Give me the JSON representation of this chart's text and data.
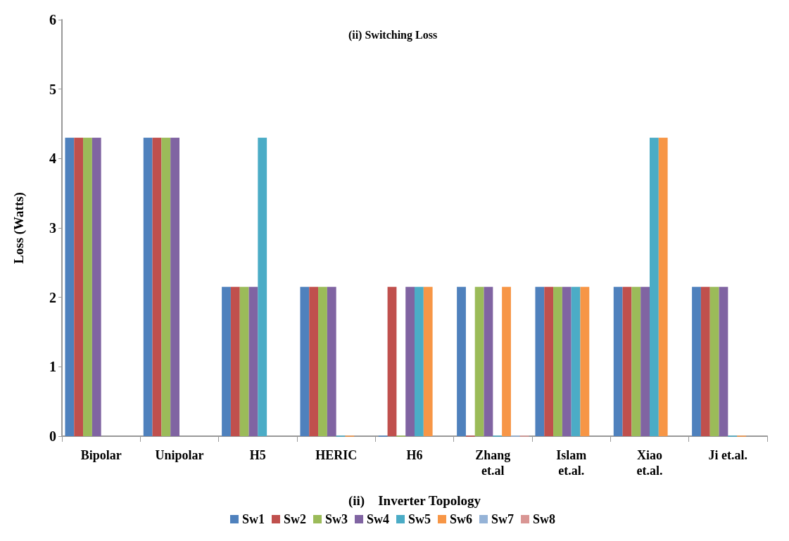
{
  "chart_data": {
    "type": "bar",
    "title": "(ii) Switching Loss",
    "xlabel": "(ii)    Inverter Topology",
    "ylabel": "Loss (Watts)",
    "categories": [
      "Bipolar",
      "Unipolar",
      "H5",
      "HERIC",
      "H6",
      "Zhang\net.al",
      "Islam\net.al.",
      "Xiao\net.al.",
      "Ji et.al."
    ],
    "series": [
      {
        "name": "Sw1",
        "color": "#4f81bd",
        "values": [
          4.3,
          4.3,
          2.15,
          2.15,
          0,
          2.15,
          2.15,
          2.15,
          2.15
        ]
      },
      {
        "name": "Sw2",
        "color": "#c0504d",
        "values": [
          4.3,
          4.3,
          2.15,
          2.15,
          2.15,
          0,
          2.15,
          2.15,
          2.15
        ]
      },
      {
        "name": "Sw3",
        "color": "#9bbb59",
        "values": [
          4.3,
          4.3,
          2.15,
          2.15,
          0,
          2.15,
          2.15,
          2.15,
          2.15
        ]
      },
      {
        "name": "Sw4",
        "color": "#8064a2",
        "values": [
          4.3,
          4.3,
          2.15,
          2.15,
          2.15,
          2.15,
          2.15,
          2.15,
          2.15
        ]
      },
      {
        "name": "Sw5",
        "color": "#4bacc6",
        "values": [
          null,
          null,
          4.3,
          0,
          2.15,
          0,
          2.15,
          4.3,
          0
        ]
      },
      {
        "name": "Sw6",
        "color": "#f79646",
        "values": [
          null,
          null,
          null,
          0,
          2.15,
          2.15,
          2.15,
          4.3,
          0
        ]
      },
      {
        "name": "Sw7",
        "color": "#95b3d7",
        "values": [
          null,
          null,
          null,
          null,
          null,
          0,
          null,
          null,
          null
        ]
      },
      {
        "name": "Sw8",
        "color": "#d99694",
        "values": [
          null,
          null,
          null,
          null,
          null,
          0,
          null,
          null,
          null
        ]
      }
    ],
    "ylim": [
      0,
      6
    ],
    "yticks": [
      0,
      1,
      2,
      3,
      4,
      5,
      6
    ],
    "grid": false,
    "legend": "bottom"
  }
}
